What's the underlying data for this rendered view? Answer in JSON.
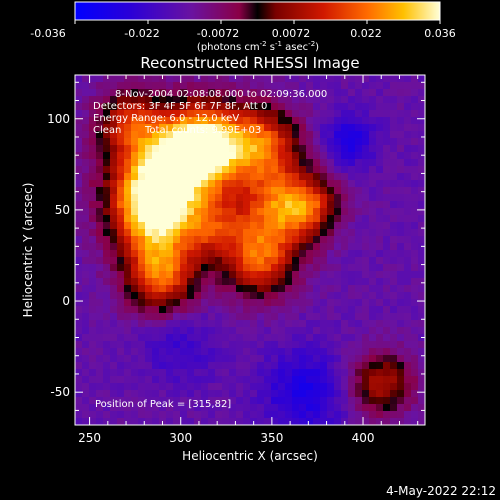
{
  "colorbar": {
    "ticks": [
      "-0.036",
      "-0.022",
      "-0.0072",
      "0.0072",
      "0.022",
      "0.036"
    ],
    "unit_main": "(photons cm",
    "unit_exp1": "-2",
    "unit_mid": " s",
    "unit_exp2": "-1",
    "unit_mid2": " asec",
    "unit_exp3": "-2",
    "unit_end": ")",
    "range": [
      -0.036,
      0.036
    ]
  },
  "title": "Reconstructed RHESSI Image",
  "annotations": {
    "time_range": "8-Nov-2004 02:08:08.000 to 02:09:36.000",
    "detectors": "Detectors: 3F 4F 5F 6F 7F 8F, Att 0",
    "energy": "Energy Range: 6.0 - 12.0 keV",
    "algorithm": "Clean",
    "counts": "Total counts: 9.99E+03",
    "peak": "Position of Peak = [315,82]"
  },
  "footer_date": "4-May-2022 22:12",
  "chart_data": {
    "type": "heatmap",
    "title": "Reconstructed RHESSI Image",
    "xlabel": "Heliocentric X (arcsec)",
    "ylabel": "Heliocentric Y (arcsec)",
    "xlim": [
      242,
      434
    ],
    "ylim": [
      -68,
      124
    ],
    "x_ticks": [
      250,
      300,
      350,
      400
    ],
    "y_ticks": [
      -50,
      0,
      50,
      100
    ],
    "peak_position": [
      315,
      82
    ],
    "intensity_sources": [
      {
        "x": 313,
        "y": 85,
        "sigma": 16,
        "amp": 1.2
      },
      {
        "x": 289,
        "y": 72,
        "sigma": 20,
        "amp": 0.9
      },
      {
        "x": 285,
        "y": 48,
        "sigma": 16,
        "amp": 1.0
      },
      {
        "x": 289,
        "y": 14,
        "sigma": 14,
        "amp": 0.85
      },
      {
        "x": 345,
        "y": 87,
        "sigma": 14,
        "amp": 0.75
      },
      {
        "x": 355,
        "y": 52,
        "sigma": 16,
        "amp": 0.85
      },
      {
        "x": 343,
        "y": 22,
        "sigma": 14,
        "amp": 0.75
      },
      {
        "x": 318,
        "y": 40,
        "sigma": 12,
        "amp": 0.5
      },
      {
        "x": 271,
        "y": 100,
        "sigma": 12,
        "amp": 0.5
      },
      {
        "x": 410,
        "y": -45,
        "sigma": 12,
        "amp": 0.6
      },
      {
        "x": 372,
        "y": 52,
        "sigma": 10,
        "amp": 0.45
      },
      {
        "x": 392,
        "y": 88,
        "sigma": 10,
        "amp": -0.35
      },
      {
        "x": 368,
        "y": -50,
        "sigma": 16,
        "amp": -0.35
      },
      {
        "x": 300,
        "y": -25,
        "sigma": 14,
        "amp": -0.2
      }
    ]
  }
}
